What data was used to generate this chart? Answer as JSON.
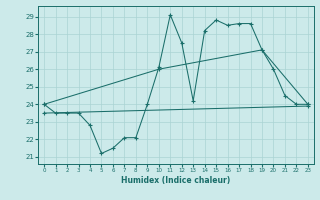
{
  "xlabel": "Humidex (Indice chaleur)",
  "bg_color": "#cceaea",
  "grid_color": "#aad4d4",
  "line_color": "#1a6e6a",
  "xlim": [
    -0.5,
    23.5
  ],
  "ylim": [
    20.6,
    29.6
  ],
  "xticks": [
    0,
    1,
    2,
    3,
    4,
    5,
    6,
    7,
    8,
    9,
    10,
    11,
    12,
    13,
    14,
    15,
    16,
    17,
    18,
    19,
    20,
    21,
    22,
    23
  ],
  "yticks": [
    21,
    22,
    23,
    24,
    25,
    26,
    27,
    28,
    29
  ],
  "line1_x": [
    0,
    1,
    2,
    3,
    4,
    5,
    6,
    7,
    8,
    9,
    10,
    11,
    12,
    13,
    14,
    15,
    16,
    17,
    18,
    19,
    20,
    21,
    22,
    23
  ],
  "line1_y": [
    24.0,
    23.5,
    23.5,
    23.5,
    22.8,
    21.2,
    21.5,
    22.1,
    22.1,
    24.0,
    26.1,
    29.1,
    27.5,
    24.2,
    28.2,
    28.8,
    28.5,
    28.6,
    28.6,
    27.1,
    26.0,
    24.5,
    24.0,
    24.0
  ],
  "line2_x": [
    0,
    10,
    19,
    23
  ],
  "line2_y": [
    24.0,
    26.0,
    27.1,
    24.0
  ],
  "line3_x": [
    0,
    23
  ],
  "line3_y": [
    23.5,
    23.9
  ]
}
